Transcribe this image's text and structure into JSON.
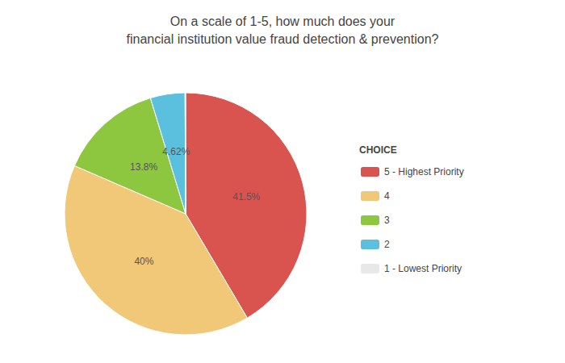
{
  "chart_data": {
    "type": "pie",
    "title": "On a scale of 1-5, how much does your\nfinancial institution value fraud detection & prevention?",
    "categories": [
      "5 - Highest Priority",
      "4",
      "3",
      "2",
      "1 - Lowest Priority"
    ],
    "values": [
      41.5,
      40.0,
      13.8,
      4.62,
      0.08
    ],
    "value_labels": [
      "41.5%",
      "40%",
      "13.8%",
      "4.62%",
      null
    ],
    "colors": [
      "#d9534f",
      "#f0c878",
      "#8dc63f",
      "#5bc0de",
      "#e8e8e8"
    ],
    "legend_title": "CHOICE",
    "legend": "right",
    "data_labels": true
  }
}
